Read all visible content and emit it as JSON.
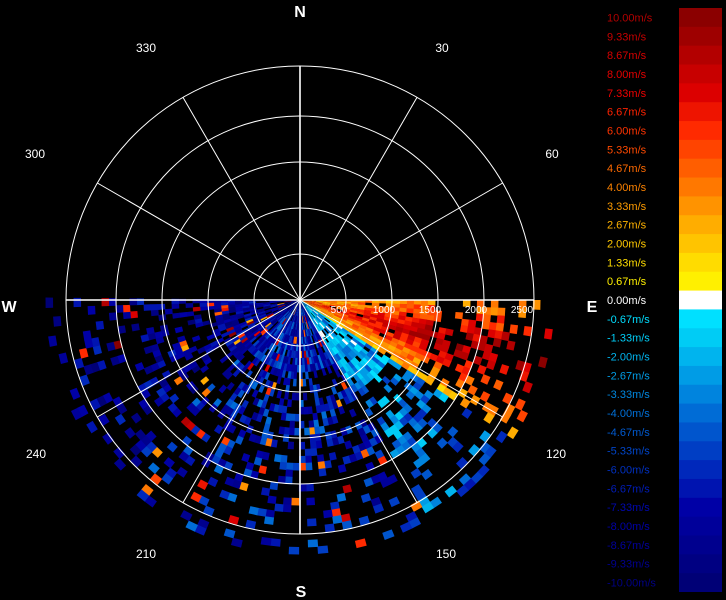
{
  "chart_data": {
    "type": "polar_radar_ppi",
    "quantity": "radial velocity",
    "compass": {
      "north": "N",
      "east": "E",
      "south": "S",
      "west": "W"
    },
    "angle_labels": [
      "30",
      "60",
      "120",
      "150",
      "210",
      "240",
      "300",
      "330"
    ],
    "range_labels": [
      "500",
      "1000",
      "1500",
      "2000",
      "2500"
    ],
    "range_max": 2700,
    "coverage_azimuth_deg": [
      90,
      270
    ],
    "velocity_range": [
      -10,
      10
    ],
    "legend": [
      {
        "label": "10.00m/s",
        "color": "#8b0000",
        "text_color": "#b30000"
      },
      {
        "label": "9.33m/s",
        "color": "#9e0000",
        "text_color": "#c40000"
      },
      {
        "label": "8.67m/s",
        "color": "#b30000",
        "text_color": "#d60000"
      },
      {
        "label": "8.00m/s",
        "color": "#c80000",
        "text_color": "#e40000"
      },
      {
        "label": "7.33m/s",
        "color": "#dc0000",
        "text_color": "#f00000"
      },
      {
        "label": "6.67m/s",
        "color": "#ee1400",
        "text_color": "#ff2200"
      },
      {
        "label": "6.00m/s",
        "color": "#ff2a00",
        "text_color": "#ff3300"
      },
      {
        "label": "5.33m/s",
        "color": "#ff4400",
        "text_color": "#ff4a00"
      },
      {
        "label": "4.67m/s",
        "color": "#ff5e00",
        "text_color": "#ff6a00"
      },
      {
        "label": "4.00m/s",
        "color": "#ff7800",
        "text_color": "#ff8400"
      },
      {
        "label": "3.33m/s",
        "color": "#ff9300",
        "text_color": "#ff9c00"
      },
      {
        "label": "2.67m/s",
        "color": "#ffad00",
        "text_color": "#ffb200"
      },
      {
        "label": "2.00m/s",
        "color": "#ffc400",
        "text_color": "#ffc800"
      },
      {
        "label": "1.33m/s",
        "color": "#ffdc00",
        "text_color": "#ffdd00"
      },
      {
        "label": "0.67m/s",
        "color": "#fff000",
        "text_color": "#fff000"
      },
      {
        "label": "0.00m/s",
        "color": "#ffffff",
        "text_color": "#ffffff"
      },
      {
        "label": "-0.67m/s",
        "color": "#00e0ff",
        "text_color": "#00ddff"
      },
      {
        "label": "-1.33m/s",
        "color": "#00ccf5",
        "text_color": "#00ccf5"
      },
      {
        "label": "-2.00m/s",
        "color": "#00b4ee",
        "text_color": "#00b4ee"
      },
      {
        "label": "-2.67m/s",
        "color": "#009ce6",
        "text_color": "#009ce6"
      },
      {
        "label": "-3.33m/s",
        "color": "#0084de",
        "text_color": "#0088e0"
      },
      {
        "label": "-4.00m/s",
        "color": "#006cd6",
        "text_color": "#0070d8"
      },
      {
        "label": "-4.67m/s",
        "color": "#0055cd",
        "text_color": "#005ad0"
      },
      {
        "label": "-5.33m/s",
        "color": "#003ec4",
        "text_color": "#0045c8"
      },
      {
        "label": "-6.00m/s",
        "color": "#0028bb",
        "text_color": "#0030c0"
      },
      {
        "label": "-6.67m/s",
        "color": "#0014b0",
        "text_color": "#001cb8"
      },
      {
        "label": "-7.33m/s",
        "color": "#0000a6",
        "text_color": "#0008b0"
      },
      {
        "label": "-8.00m/s",
        "color": "#00009a",
        "text_color": "#0000a8"
      },
      {
        "label": "-8.67m/s",
        "color": "#00008e",
        "text_color": "#00009c"
      },
      {
        "label": "-9.33m/s",
        "color": "#000082",
        "text_color": "#000090"
      },
      {
        "label": "-10.00m/s",
        "color": "#000076",
        "text_color": "#000084"
      }
    ],
    "grid": true,
    "legend_position": "right"
  }
}
